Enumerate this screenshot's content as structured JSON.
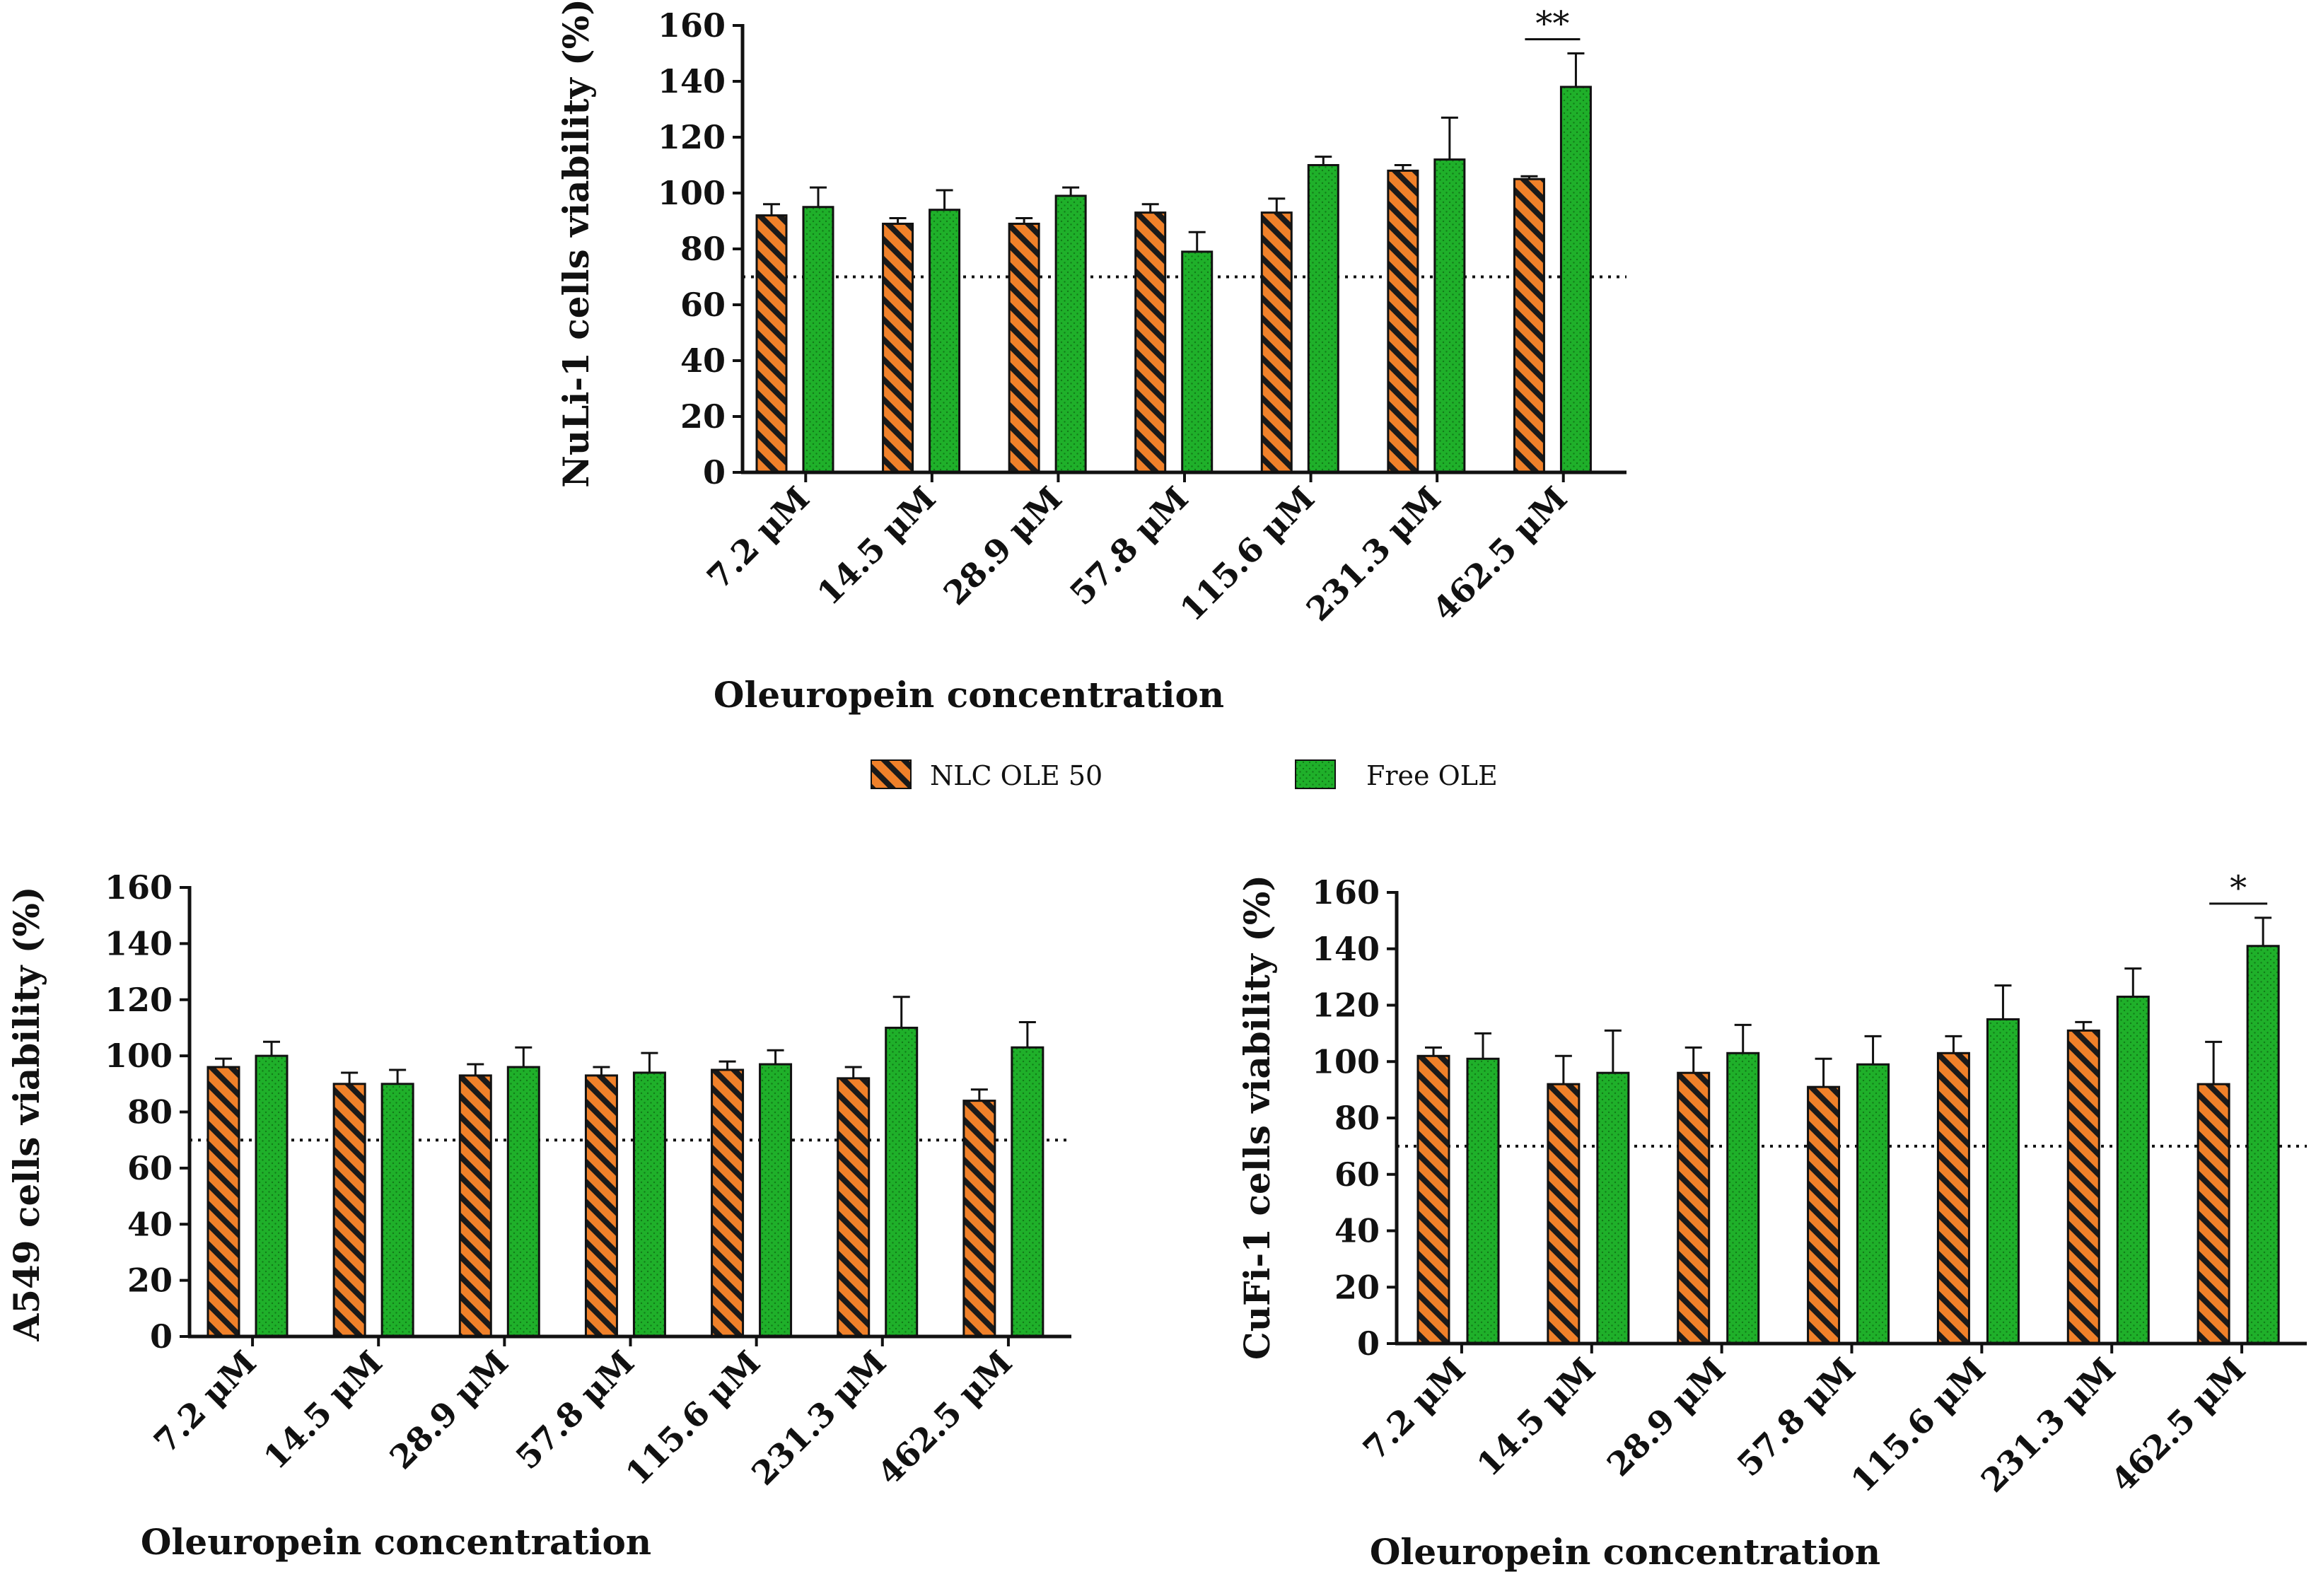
{
  "legend": {
    "items": [
      {
        "label": "NLC OLE 50",
        "pattern": "hatch"
      },
      {
        "label": "Free OLE",
        "pattern": "dots"
      }
    ]
  },
  "colors": {
    "nlc_fill": "#f0812a",
    "nlc_hatch": "#1a1a1a",
    "free_fill": "#1fb02a",
    "free_dots": "#127a18",
    "axis": "#111111",
    "threshold": "#111111"
  },
  "chart_data": [
    {
      "id": "nuli",
      "type": "bar",
      "title": "",
      "xlabel": "Oleuropein concentration",
      "ylabel": "NuLi-1 cells viability (%)",
      "categories": [
        "7.2 μM",
        "14.5 μM",
        "28.9 μM",
        "57.8 μM",
        "115.6 μM",
        "231.3 μM",
        "462.5 μM"
      ],
      "ylim": [
        0,
        160
      ],
      "yticks": [
        0,
        20,
        40,
        60,
        80,
        100,
        120,
        140,
        160
      ],
      "threshold": 70,
      "series": [
        {
          "name": "NLC OLE 50",
          "values": [
            92,
            89,
            89,
            93,
            93,
            108,
            105
          ],
          "errors": [
            4,
            2,
            2,
            3,
            5,
            2,
            1
          ]
        },
        {
          "name": "Free OLE",
          "values": [
            95,
            94,
            99,
            79,
            110,
            112,
            138
          ],
          "errors": [
            7,
            7,
            3,
            7,
            3,
            15,
            12
          ]
        }
      ],
      "significance": [
        {
          "category": 6,
          "label": "**"
        }
      ]
    },
    {
      "id": "a549",
      "type": "bar",
      "title": "",
      "xlabel": "Oleuropein concentration",
      "ylabel": "A549 cells viability (%)",
      "categories": [
        "7.2 μM",
        "14.5 μM",
        "28.9 μM",
        "57.8 μM",
        "115.6 μM",
        "231.3 μM",
        "462.5 μM"
      ],
      "ylim": [
        0,
        160
      ],
      "yticks": [
        0,
        20,
        40,
        60,
        80,
        100,
        120,
        140,
        160
      ],
      "threshold": 70,
      "series": [
        {
          "name": "NLC OLE 50",
          "values": [
            96,
            90,
            93,
            93,
            95,
            92,
            84
          ],
          "errors": [
            3,
            4,
            4,
            3,
            3,
            4,
            4
          ]
        },
        {
          "name": "Free OLE",
          "values": [
            100,
            90,
            96,
            94,
            97,
            110,
            103
          ],
          "errors": [
            5,
            5,
            7,
            7,
            5,
            11,
            9
          ]
        }
      ],
      "significance": []
    },
    {
      "id": "cufi",
      "type": "bar",
      "title": "",
      "xlabel": "Oleuropein concentration",
      "ylabel": "CuFi-1 cells viability (%)",
      "categories": [
        "7.2 μM",
        "14.5 μM",
        "28.9 μM",
        "57.8 μM",
        "115.6 μM",
        "231.3 μM",
        "462.5 μM"
      ],
      "ylim": [
        0,
        160
      ],
      "yticks": [
        0,
        20,
        40,
        60,
        80,
        100,
        120,
        140,
        160
      ],
      "threshold": 70,
      "series": [
        {
          "name": "NLC OLE 50",
          "values": [
            102,
            92,
            96,
            91,
            103,
            111,
            92
          ],
          "errors": [
            3,
            10,
            9,
            10,
            6,
            3,
            15
          ]
        },
        {
          "name": "Free OLE",
          "values": [
            101,
            96,
            103,
            99,
            115,
            123,
            141
          ],
          "errors": [
            9,
            15,
            10,
            10,
            12,
            10,
            10
          ]
        }
      ],
      "significance": [
        {
          "category": 6,
          "label": "*"
        }
      ]
    }
  ]
}
